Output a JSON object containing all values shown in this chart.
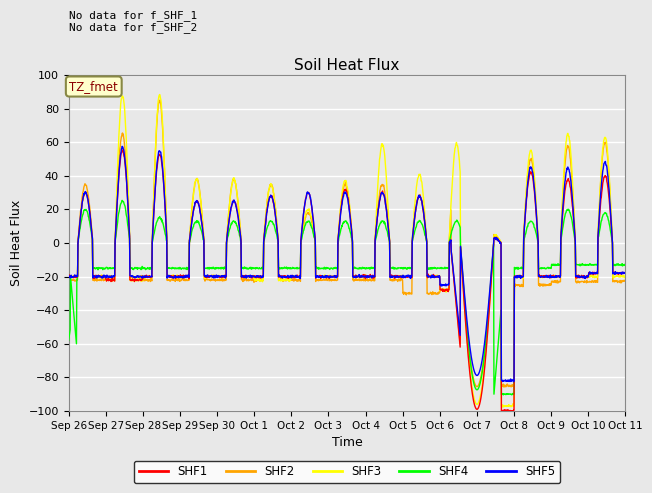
{
  "title": "Soil Heat Flux",
  "ylabel": "Soil Heat Flux",
  "xlabel": "Time",
  "ylim": [
    -100,
    100
  ],
  "fig_facecolor": "#e8e8e8",
  "ax_facecolor": "#e8e8e8",
  "legend_labels": [
    "SHF1",
    "SHF2",
    "SHF3",
    "SHF4",
    "SHF5"
  ],
  "legend_colors": [
    "red",
    "orange",
    "yellow",
    "lime",
    "blue"
  ],
  "annotation_text": "No data for f_SHF_1\nNo data for f_SHF_2",
  "tz_label": "TZ_fmet",
  "xticklabels": [
    "Sep 26",
    "Sep 27",
    "Sep 28",
    "Sep 29",
    "Sep 30",
    "Oct 1",
    "Oct 2",
    "Oct 3",
    "Oct 4",
    "Oct 5",
    "Oct 6",
    "Oct 7",
    "Oct 8",
    "Oct 9",
    "Oct 10",
    "Oct 11"
  ]
}
